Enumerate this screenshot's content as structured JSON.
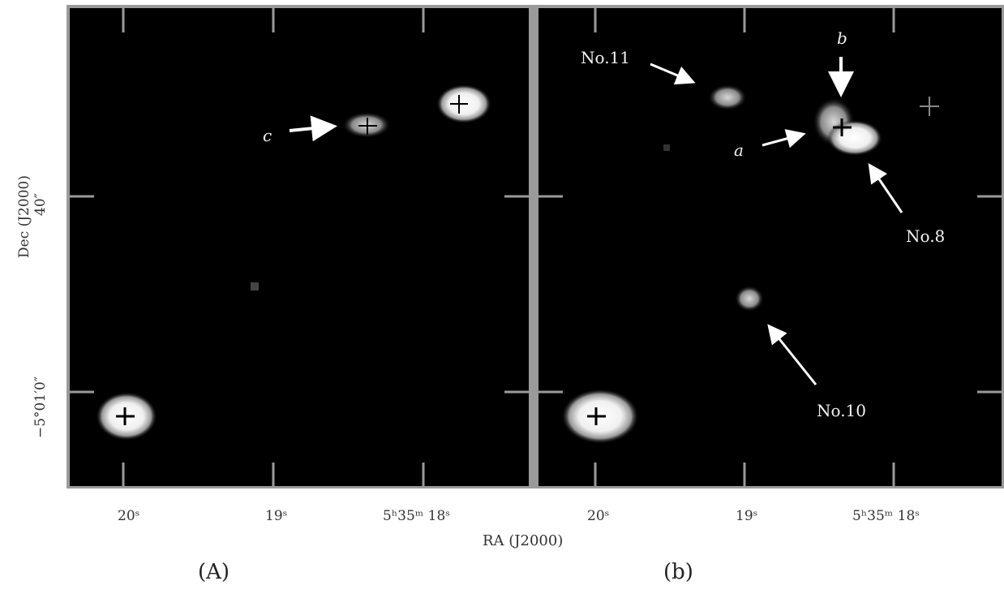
{
  "figure": {
    "panels": [
      {
        "id": "a",
        "label": "(A)",
        "annotations": [
          {
            "text": "c"
          }
        ]
      },
      {
        "id": "b",
        "label": "(b)",
        "annotations": [
          {
            "text": "No.11"
          },
          {
            "text": "b"
          },
          {
            "text": "a"
          },
          {
            "text": "No.8"
          },
          {
            "text": "No.10"
          }
        ]
      }
    ],
    "x_ticks": [
      "20ˢ",
      "19ˢ",
      "5ʰ35ᵐ 18ˢ"
    ],
    "x_axis_title": "RA (J2000)",
    "y_axis_title": "Dec (J2000)",
    "y_ticks": [
      "40″",
      "−5°01′0″"
    ]
  }
}
